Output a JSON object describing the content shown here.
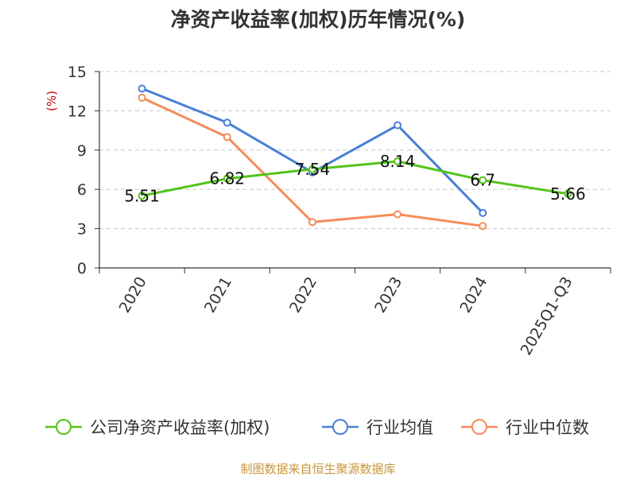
{
  "chart_data": {
    "type": "line",
    "title": "净资产收益率(加权)历年情况(%)",
    "ylabel": "(%)",
    "categories": [
      "2020",
      "2021",
      "2022",
      "2023",
      "2024",
      "2025Q1-Q3"
    ],
    "yticks": [
      "0",
      "3",
      "6",
      "9",
      "12",
      "15"
    ],
    "ylim": [
      0,
      15
    ],
    "grid": true,
    "legend_position": "bottom",
    "series": [
      {
        "name": "公司净资产收益率(加权)",
        "color": "#52c41a",
        "values": [
          5.51,
          6.82,
          7.54,
          8.14,
          6.7,
          5.66
        ],
        "labels": [
          "5.51",
          "6.82",
          "7.54",
          "8.14",
          "6.7",
          "5.66"
        ]
      },
      {
        "name": "行业均值",
        "color": "#4a7fd6",
        "values": [
          13.7,
          11.1,
          7.3,
          10.9,
          4.2,
          null
        ]
      },
      {
        "name": "行业中位数",
        "color": "#f68c5a",
        "values": [
          13.0,
          10.0,
          3.5,
          4.1,
          3.2,
          null
        ]
      }
    ]
  },
  "source": "制图数据来自恒生聚源数据库"
}
